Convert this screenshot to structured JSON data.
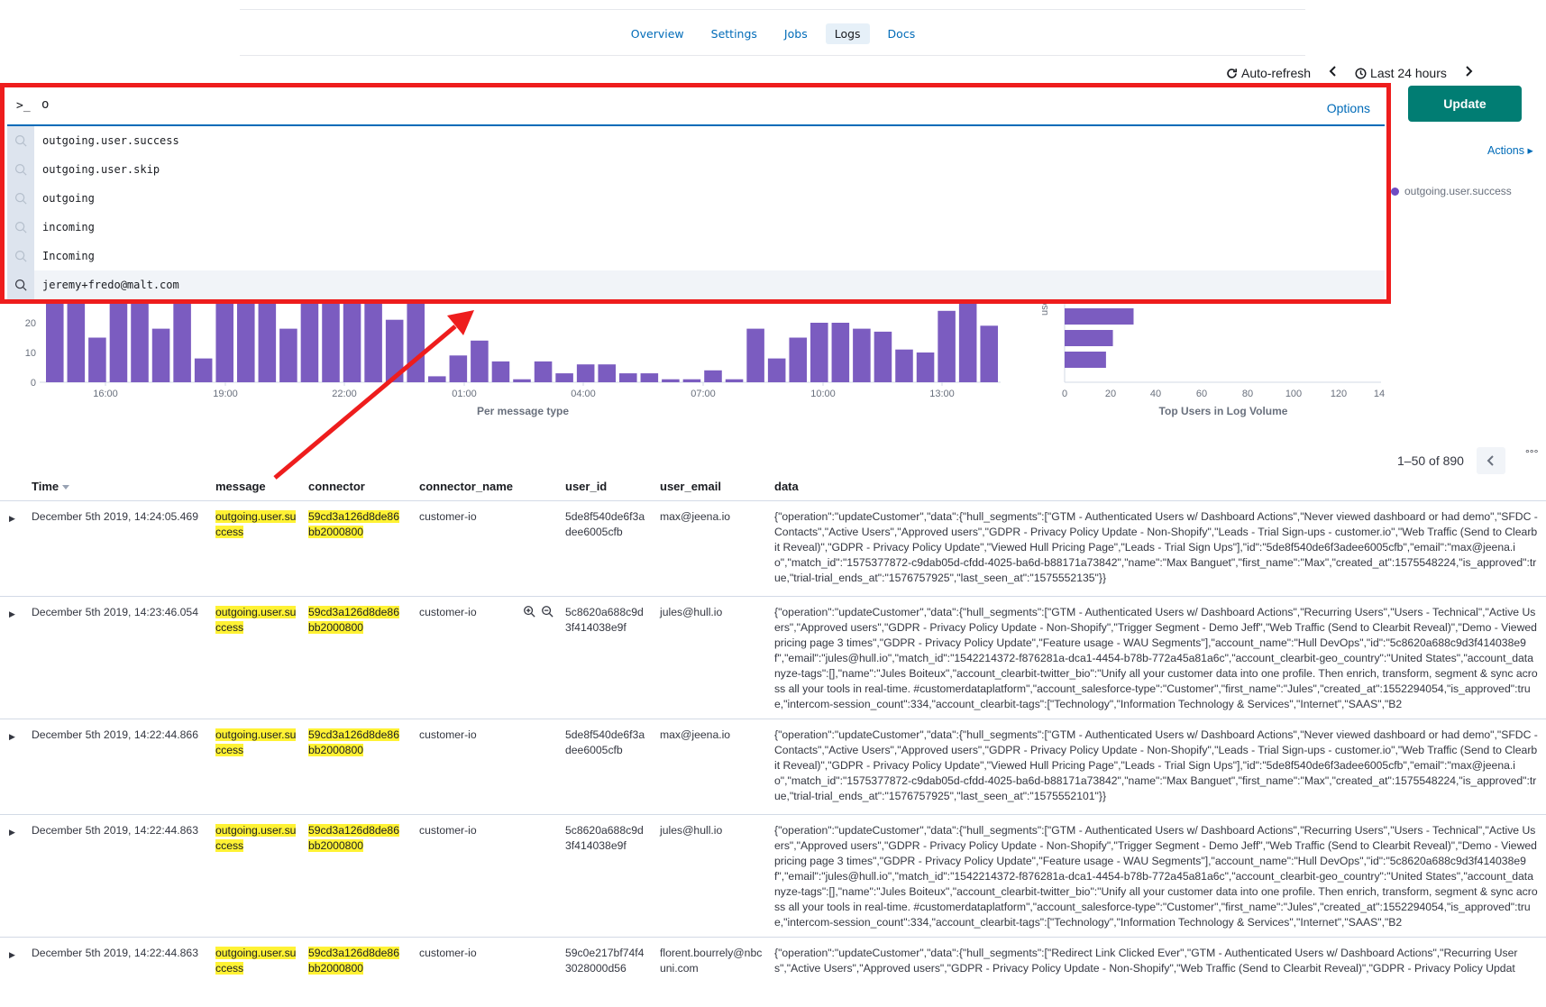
{
  "nav": {
    "tabs": [
      {
        "label": "Overview",
        "active": false
      },
      {
        "label": "Settings",
        "active": false
      },
      {
        "label": "Jobs",
        "active": false
      },
      {
        "label": "Logs",
        "active": true
      },
      {
        "label": "Docs",
        "active": false
      }
    ]
  },
  "timebar": {
    "auto_refresh": "Auto-refresh",
    "range": "Last 24 hours",
    "refresh_icon": "refresh-icon",
    "clock_icon": "clock-icon"
  },
  "update_button": "Update",
  "actions_link": "Actions ▸",
  "legend_right": "outgoing.user.success",
  "search": {
    "prompt": ">_",
    "query": "o",
    "options_label": "Options"
  },
  "suggestions": [
    {
      "text": "outgoing.user.success",
      "selected": false
    },
    {
      "text": "outgoing.user.skip",
      "selected": false
    },
    {
      "text": "outgoing",
      "selected": false
    },
    {
      "text": "incoming",
      "selected": false
    },
    {
      "text": "Incoming",
      "selected": false
    },
    {
      "text": "jeremy+fredo@malt.com",
      "selected": true
    }
  ],
  "colors": {
    "accent": "#006bb8",
    "update": "#017d73",
    "bar": "#7b5cc0",
    "highlight_box": "#ee1d1d",
    "text_highlight": "#fff234"
  },
  "chart_data": [
    {
      "type": "bar",
      "title": "Per message type",
      "ylabel": "",
      "yticks": [
        0,
        10,
        20
      ],
      "xticks": [
        "16:00",
        "19:00",
        "22:00",
        "01:00",
        "04:00",
        "07:00",
        "10:00",
        "13:00"
      ],
      "series": [
        {
          "name": "outgoing.user.success",
          "values": [
            28,
            28,
            15,
            28,
            28,
            18,
            28,
            8,
            28,
            28,
            28,
            18,
            28,
            28,
            28,
            28,
            21,
            28,
            2,
            9,
            14,
            7,
            1,
            7,
            3,
            6,
            6,
            3,
            3,
            1,
            1,
            4,
            1,
            18,
            8,
            15,
            20,
            20,
            18,
            17,
            11,
            10,
            24,
            28,
            19
          ]
        }
      ]
    },
    {
      "type": "bar",
      "orientation": "horizontal",
      "title": "Top Users in Log Volume",
      "ylabel": "user_i",
      "xticks": [
        "0",
        "20",
        "40",
        "60",
        "80",
        "100",
        "120",
        "14"
      ],
      "values": [
        30,
        21,
        18
      ]
    }
  ],
  "pagination": {
    "range": "1–50 of 890",
    "more": "°°°"
  },
  "table": {
    "columns": [
      "Time",
      "message",
      "connector",
      "connector_name",
      "user_id",
      "user_email",
      "data"
    ],
    "rows": [
      {
        "time": "December 5th 2019, 14:24:05.469",
        "message": "outgoing.user.success",
        "connector": "59cd3a126d8de86bb2000800",
        "connector_name": "customer-io",
        "user_id": "5de8f540de6f3adee6005cfb",
        "user_email": "max@jeena.io",
        "data": "{\"operation\":\"updateCustomer\",\"data\":{\"hull_segments\":[\"GTM - Authenticated Users w/ Dashboard Actions\",\"Never viewed dashboard or had demo\",\"SFDC - Contacts\",\"Active Users\",\"Approved users\",\"GDPR - Privacy Policy Update - Non-Shopify\",\"Leads - Trial Sign-ups - customer.io\",\"Web Traffic (Send to Clearbit Reveal)\",\"GDPR - Privacy Policy Update\",\"Viewed Hull Pricing Page\",\"Leads - Trial Sign Ups\"],\"id\":\"5de8f540de6f3adee6005cfb\",\"email\":\"max@jeena.io\",\"match_id\":\"1575377872-c9dab05d-cfdd-4025-ba6d-b88171a73842\",\"name\":\"Max Banguet\",\"first_name\":\"Max\",\"created_at\":1575548224,\"is_approved\":true,\"trial-trial_ends_at\":\"1576757925\",\"last_seen_at\":\"1575552135\"}}"
      },
      {
        "time": "December 5th 2019, 14:23:46.054",
        "message": "outgoing.user.success",
        "connector": "59cd3a126d8de86bb2000800",
        "connector_name": "customer-io",
        "user_id": "5c8620a688c9d3f414038e9f",
        "user_email": "jules@hull.io",
        "data": "{\"operation\":\"updateCustomer\",\"data\":{\"hull_segments\":[\"GTM - Authenticated Users w/ Dashboard Actions\",\"Recurring Users\",\"Users - Technical\",\"Active Users\",\"Approved users\",\"GDPR - Privacy Policy Update - Non-Shopify\",\"Trigger Segment - Demo Jeff\",\"Web Traffic (Send to Clearbit Reveal)\",\"Demo - Viewed pricing page 3 times\",\"GDPR - Privacy Policy Update\",\"Feature usage - WAU Segments\"],\"account_name\":\"Hull DevOps\",\"id\":\"5c8620a688c9d3f414038e9f\",\"email\":\"jules@hull.io\",\"match_id\":\"1542214372-f876281a-dca1-4454-b78b-772a45a81a6c\",\"account_clearbit-geo_country\":\"United States\",\"account_datanyze-tags\":[],\"name\":\"Jules Boiteux\",\"account_clearbit-twitter_bio\":\"Unify all your customer data into one profile. Then enrich, transform, segment & sync across all your tools in real-time. #customerdataplatform\",\"account_salesforce-type\":\"Customer\",\"first_name\":\"Jules\",\"created_at\":1552294054,\"is_approved\":true,\"intercom-session_count\":334,\"account_clearbit-tags\":[\"Technology\",\"Information Technology & Services\",\"Internet\",\"SAAS\",\"B2"
      },
      {
        "time": "December 5th 2019, 14:22:44.866",
        "message": "outgoing.user.success",
        "connector": "59cd3a126d8de86bb2000800",
        "connector_name": "customer-io",
        "user_id": "5de8f540de6f3adee6005cfb",
        "user_email": "max@jeena.io",
        "data": "{\"operation\":\"updateCustomer\",\"data\":{\"hull_segments\":[\"GTM - Authenticated Users w/ Dashboard Actions\",\"Never viewed dashboard or had demo\",\"SFDC - Contacts\",\"Active Users\",\"Approved users\",\"GDPR - Privacy Policy Update - Non-Shopify\",\"Leads - Trial Sign-ups - customer.io\",\"Web Traffic (Send to Clearbit Reveal)\",\"GDPR - Privacy Policy Update\",\"Viewed Hull Pricing Page\",\"Leads - Trial Sign Ups\"],\"id\":\"5de8f540de6f3adee6005cfb\",\"email\":\"max@jeena.io\",\"match_id\":\"1575377872-c9dab05d-cfdd-4025-ba6d-b88171a73842\",\"name\":\"Max Banguet\",\"first_name\":\"Max\",\"created_at\":1575548224,\"is_approved\":true,\"trial-trial_ends_at\":\"1576757925\",\"last_seen_at\":\"1575552101\"}}"
      },
      {
        "time": "December 5th 2019, 14:22:44.863",
        "message": "outgoing.user.success",
        "connector": "59cd3a126d8de86bb2000800",
        "connector_name": "customer-io",
        "user_id": "5c8620a688c9d3f414038e9f",
        "user_email": "jules@hull.io",
        "data": "{\"operation\":\"updateCustomer\",\"data\":{\"hull_segments\":[\"GTM - Authenticated Users w/ Dashboard Actions\",\"Recurring Users\",\"Users - Technical\",\"Active Users\",\"Approved users\",\"GDPR - Privacy Policy Update - Non-Shopify\",\"Trigger Segment - Demo Jeff\",\"Web Traffic (Send to Clearbit Reveal)\",\"Demo - Viewed pricing page 3 times\",\"GDPR - Privacy Policy Update\",\"Feature usage - WAU Segments\"],\"account_name\":\"Hull DevOps\",\"id\":\"5c8620a688c9d3f414038e9f\",\"email\":\"jules@hull.io\",\"match_id\":\"1542214372-f876281a-dca1-4454-b78b-772a45a81a6c\",\"account_clearbit-geo_country\":\"United States\",\"account_datanyze-tags\":[],\"name\":\"Jules Boiteux\",\"account_clearbit-twitter_bio\":\"Unify all your customer data into one profile. Then enrich, transform, segment & sync across all your tools in real-time. #customerdataplatform\",\"account_salesforce-type\":\"Customer\",\"first_name\":\"Jules\",\"created_at\":1552294054,\"is_approved\":true,\"intercom-session_count\":334,\"account_clearbit-tags\":[\"Technology\",\"Information Technology & Services\",\"Internet\",\"SAAS\",\"B2"
      },
      {
        "time": "December 5th 2019, 14:22:44.863",
        "message": "outgoing.user.success",
        "connector": "59cd3a126d8de86bb2000800",
        "connector_name": "customer-io",
        "user_id": "59c0e217bf74f43028000d56",
        "user_email": "florent.bourrely@nbcuni.com",
        "data": "{\"operation\":\"updateCustomer\",\"data\":{\"hull_segments\":[\"Redirect Link Clicked Ever\",\"GTM - Authenticated Users w/ Dashboard Actions\",\"Recurring Users\",\"Active Users\",\"Approved users\",\"GDPR - Privacy Policy Update - Non-Shopify\",\"Web Traffic (Send to Clearbit Reveal)\",\"GDPR - Privacy Policy Updat"
      }
    ]
  }
}
